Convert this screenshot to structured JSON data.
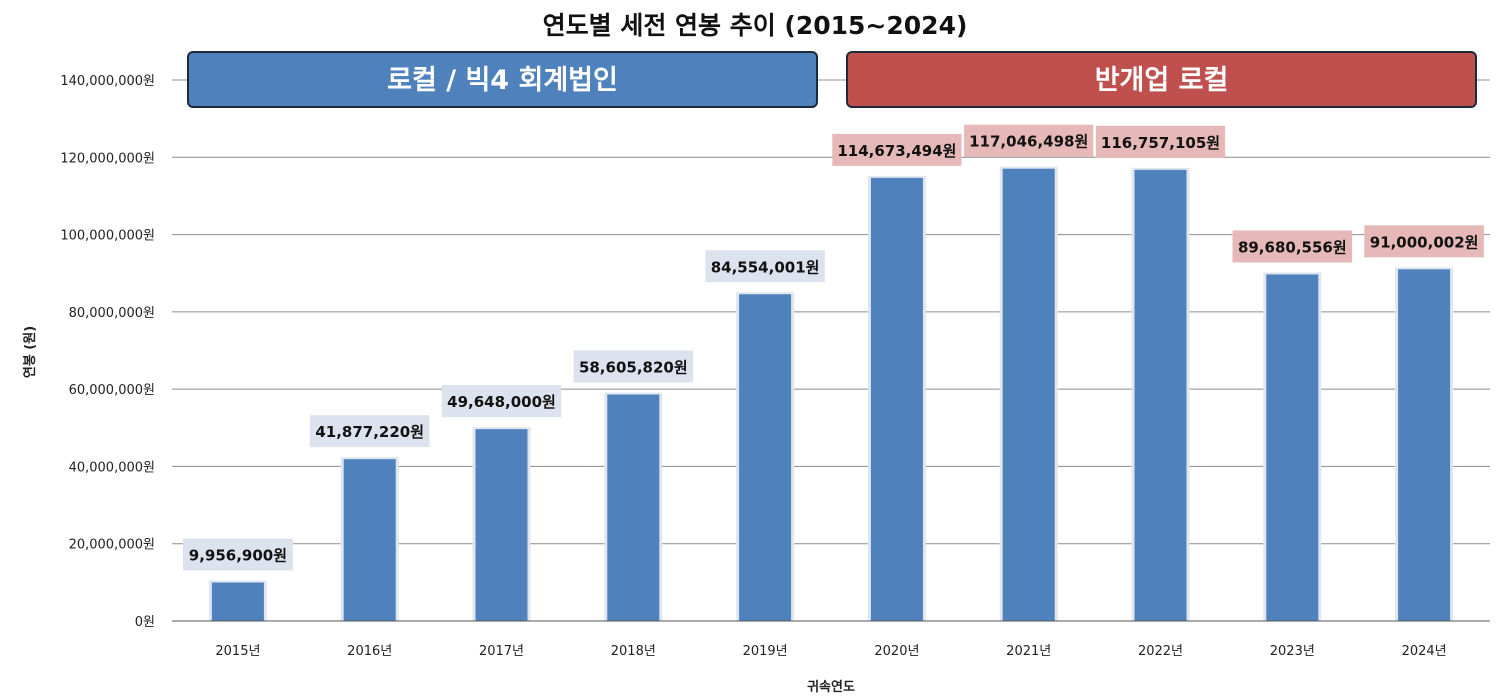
{
  "chart_data": {
    "type": "bar",
    "title": "연도별 세전 연봉 추이 (2015~2024)",
    "xlabel": "귀속연도",
    "ylabel": "연봉 (원)",
    "ylim": [
      0,
      140000000
    ],
    "grid": true,
    "yticks": [
      {
        "value": 0,
        "label": "0원"
      },
      {
        "value": 20000000,
        "label": "20,000,000원"
      },
      {
        "value": 40000000,
        "label": "40,000,000원"
      },
      {
        "value": 60000000,
        "label": "60,000,000원"
      },
      {
        "value": 80000000,
        "label": "80,000,000원"
      },
      {
        "value": 100000000,
        "label": "100,000,000원"
      },
      {
        "value": 120000000,
        "label": "120,000,000원"
      },
      {
        "value": 140000000,
        "label": "140,000,000원"
      }
    ],
    "categories": [
      "2015년",
      "2016년",
      "2017년",
      "2018년",
      "2019년",
      "2020년",
      "2021년",
      "2022년",
      "2023년",
      "2024년"
    ],
    "values": [
      9956900,
      41877220,
      49648000,
      58605820,
      84554001,
      114673494,
      117046498,
      116757105,
      89680556,
      91000002
    ],
    "data_labels": [
      "9,956,900원",
      "41,877,220원",
      "49,648,000원",
      "58,605,820원",
      "84,554,001원",
      "114,673,494원",
      "117,046,498원",
      "116,757,105원",
      "89,680,556원",
      "91,000,002원"
    ],
    "label_period": [
      "a",
      "a",
      "a",
      "a",
      "a",
      "b",
      "b",
      "b",
      "b",
      "b"
    ],
    "bar_color": "#4f81bd",
    "periods": [
      {
        "id": "a",
        "label": "로컬 / 빅4 회계법인",
        "from": 0,
        "to": 4,
        "color": "#4f81bd",
        "label_bg": "#dce3ee"
      },
      {
        "id": "b",
        "label": "반개업 로컬",
        "from": 5,
        "to": 9,
        "color": "#c0504d",
        "label_bg": "#e6b8b7"
      }
    ]
  }
}
